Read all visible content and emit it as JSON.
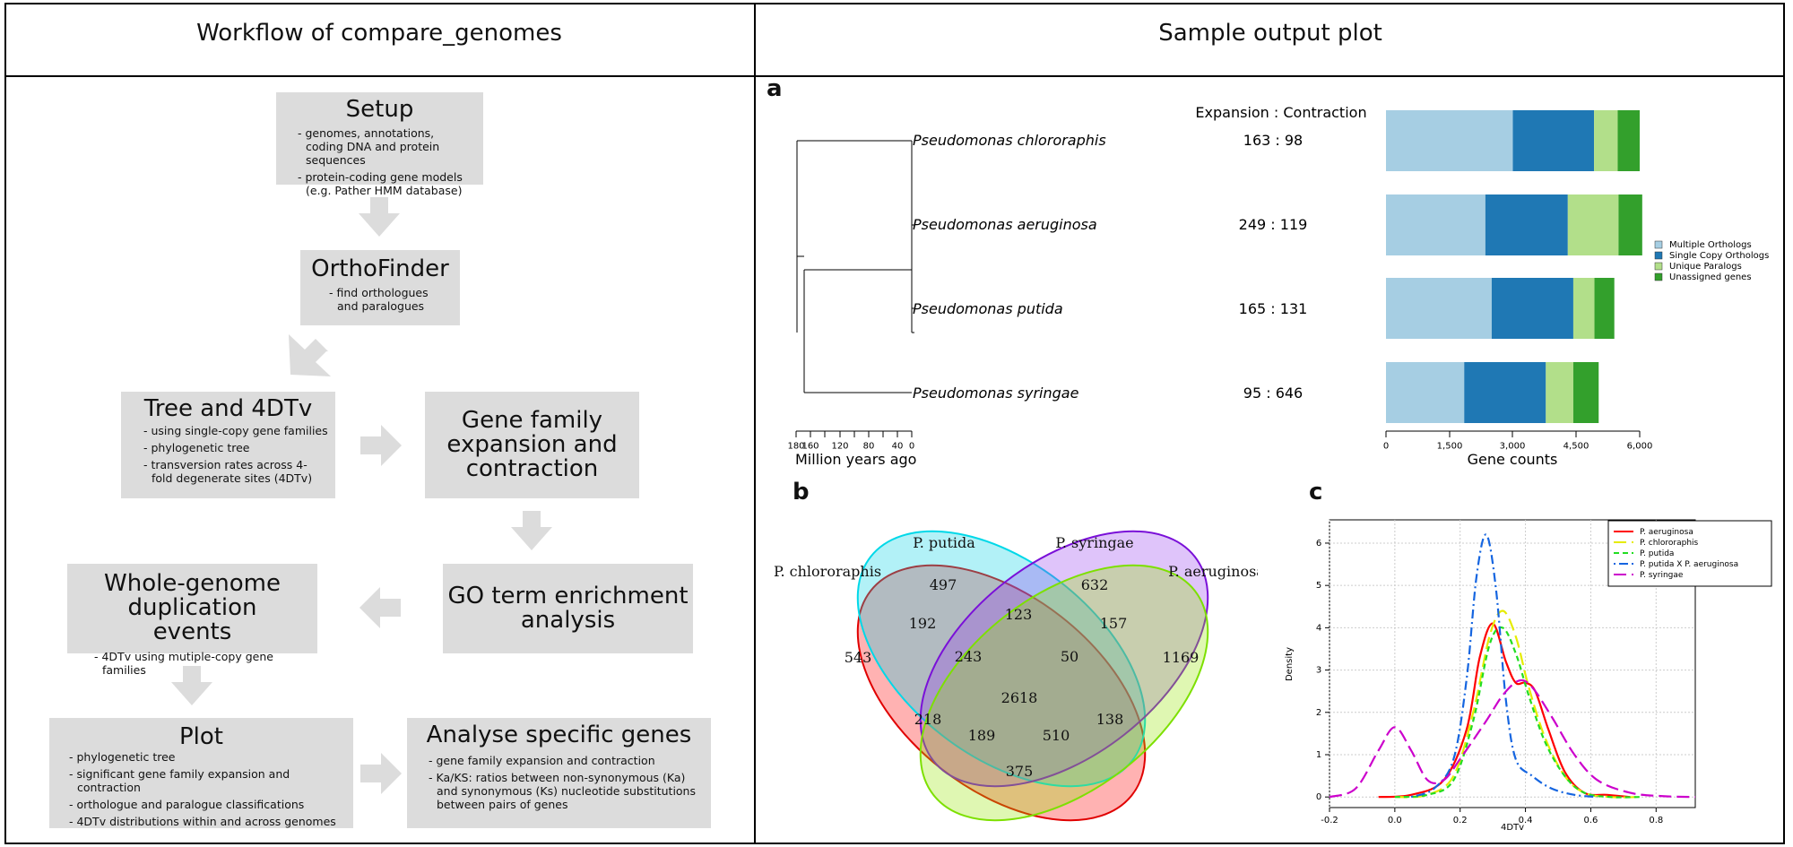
{
  "left_title": "Workflow of compare_genomes",
  "right_title": "Sample output plot",
  "workflow": {
    "setup": {
      "title": "Setup",
      "bullets": [
        "- genomes, annotations, coding DNA and protein sequences",
        "- protein-coding gene models (e.g. Pather HMM database)"
      ]
    },
    "orthofinder": {
      "title": "OrthoFinder",
      "bullets": [
        "- find orthologues and paralogues"
      ]
    },
    "tree": {
      "title": "Tree and 4DTv",
      "bullets": [
        "- using single-copy gene families",
        "- phylogenetic tree",
        "- transversion rates across 4-fold degenerate sites (4DTv)"
      ]
    },
    "gene_family": {
      "title": "Gene family expansion and contraction"
    },
    "go_term": {
      "title": "GO term enrichment analysis"
    },
    "wgd": {
      "title": "Whole-genome duplication events",
      "bullets": [
        "- 4DTv using mutiple-copy gene families"
      ]
    },
    "plot": {
      "title": "Plot",
      "bullets": [
        "- phylogenetic tree",
        "- significant gene family expansion and contraction",
        "- orthologue and paralogue classifications",
        "- 4DTv distributions within and across genomes"
      ]
    },
    "analyse": {
      "title": "Analyse specific genes",
      "bullets": [
        "- gene family expansion and contraction",
        "- Ka/KS: ratios between non-synonymous (Ka) and synonymous (Ks) nucleotide substitutions between pairs of genes"
      ]
    }
  },
  "panel_labels": {
    "a": "a",
    "b": "b",
    "c": "c"
  },
  "panel_a": {
    "ec_header": "Expansion : Contraction",
    "tree_xlabel": "Million years ago",
    "tree_ticks": [
      "180",
      "160",
      "120",
      "80",
      "40",
      "0"
    ],
    "bar_xlabel": "Gene counts",
    "bar_ticks": [
      "0",
      "1,500",
      "3,000",
      "4,500",
      "6,000"
    ]
  },
  "chart_data": [
    {
      "type": "bar",
      "orientation": "horizontal-stacked",
      "categories": [
        "Pseudomonas chlororaphis",
        "Pseudomonas aeruginosa",
        "Pseudomonas putida",
        "Pseudomonas syringae"
      ],
      "expansion_contraction": [
        "163 : 98",
        "249 : 119",
        "165 : 131",
        "95 : 646"
      ],
      "series": [
        {
          "name": "Multiple Orthologs",
          "color": "#a6cee3",
          "values": [
            3000,
            2350,
            2500,
            1850
          ]
        },
        {
          "name": "Single Copy Orthologs",
          "color": "#1f78b4",
          "values": [
            1920,
            1950,
            1930,
            1930
          ]
        },
        {
          "name": "Unique Paralogs",
          "color": "#b2df8a",
          "values": [
            560,
            1200,
            500,
            650
          ]
        },
        {
          "name": "Unassigned genes",
          "color": "#33a02c",
          "values": [
            520,
            560,
            470,
            600
          ]
        }
      ],
      "xlabel": "Gene counts",
      "xlim": [
        0,
        6000
      ],
      "legend": "right"
    },
    {
      "type": "venn",
      "sets": [
        "P. chlororaphis",
        "P. putida",
        "P. syringae",
        "P. aeruginosa"
      ],
      "regions": [
        "543",
        "497",
        "632",
        "1169",
        "192",
        "123",
        "157",
        "243",
        "50",
        "2618",
        "218",
        "189",
        "510",
        "138",
        "375"
      ]
    },
    {
      "type": "line",
      "xlabel": "4DTv",
      "ylabel": "Density",
      "xlim": [
        -0.2,
        0.9
      ],
      "ylim": [
        0,
        6.2
      ],
      "x_ticks": [
        "-0.2",
        "0.0",
        "0.2",
        "0.4",
        "0.6",
        "0.8"
      ],
      "y_ticks": [
        "0",
        "1",
        "2",
        "3",
        "4",
        "5",
        "6"
      ],
      "grid": true,
      "legend": "top-right",
      "series": [
        {
          "name": "P. aeruginosa",
          "color": "#ff0000",
          "dash": "solid",
          "x": [
            -0.05,
            0.05,
            0.15,
            0.22,
            0.26,
            0.3,
            0.34,
            0.37,
            0.4,
            0.43,
            0.47,
            0.52,
            0.58,
            0.65,
            0.72
          ],
          "y": [
            0.0,
            0.05,
            0.4,
            1.6,
            3.3,
            4.1,
            3.2,
            2.7,
            2.7,
            2.5,
            1.6,
            0.6,
            0.1,
            0.05,
            0.0
          ]
        },
        {
          "name": "P. chlororaphis",
          "color": "#e6ec00",
          "dash": "longdash",
          "x": [
            0.0,
            0.1,
            0.18,
            0.24,
            0.29,
            0.33,
            0.37,
            0.41,
            0.46,
            0.52,
            0.58,
            0.66,
            0.75
          ],
          "y": [
            0.0,
            0.05,
            0.5,
            2.0,
            3.8,
            4.4,
            3.8,
            2.6,
            1.4,
            0.5,
            0.1,
            0.0,
            0.0
          ]
        },
        {
          "name": "P. putida",
          "color": "#22dd22",
          "dash": "dash",
          "x": [
            0.0,
            0.1,
            0.18,
            0.24,
            0.29,
            0.33,
            0.37,
            0.41,
            0.46,
            0.52,
            0.58,
            0.66,
            0.75
          ],
          "y": [
            0.0,
            0.05,
            0.4,
            1.8,
            3.6,
            4.0,
            3.4,
            2.4,
            1.3,
            0.5,
            0.1,
            0.0,
            0.0
          ]
        },
        {
          "name": "P. putida X P. aeruginosa",
          "color": "#1565e0",
          "dash": "dotdash",
          "x": [
            0.05,
            0.12,
            0.18,
            0.22,
            0.25,
            0.28,
            0.31,
            0.34,
            0.37,
            0.42,
            0.48,
            0.55,
            0.62
          ],
          "y": [
            0.0,
            0.2,
            0.9,
            2.8,
            5.2,
            6.2,
            4.9,
            2.3,
            0.9,
            0.5,
            0.2,
            0.05,
            0.0
          ]
        },
        {
          "name": "P. syringae",
          "color": "#cc00cc",
          "dash": "longdash",
          "x": [
            -0.2,
            -0.12,
            -0.05,
            0.0,
            0.05,
            0.1,
            0.15,
            0.2,
            0.28,
            0.33,
            0.38,
            0.42,
            0.48,
            0.55,
            0.62,
            0.72,
            0.82,
            0.92
          ],
          "y": [
            0.0,
            0.2,
            1.1,
            1.65,
            1.1,
            0.4,
            0.4,
            0.9,
            1.8,
            2.4,
            2.75,
            2.6,
            1.9,
            1.0,
            0.4,
            0.1,
            0.02,
            0.0
          ]
        }
      ]
    }
  ]
}
